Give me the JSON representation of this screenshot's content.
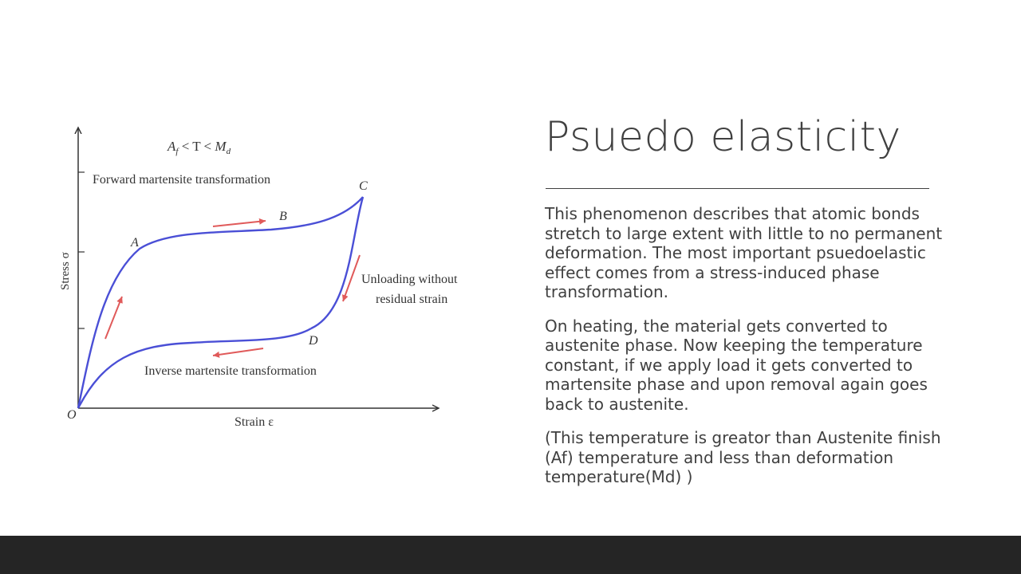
{
  "slide": {
    "title": "Psuedo elasticity",
    "paragraphs": [
      "This phenomenon describes that atomic bonds stretch to large extent with little to no permanent deformation. The most important psuedoelastic effect comes from a stress-induced phase transformation.",
      "On heating, the material gets converted to austenite phase. Now keeping the temperature constant, if we apply load it gets converted to martensite phase and upon removal again goes back to austenite.",
      "(This temperature is greator than Austenite finish (Af) temperature and less than deformation temperature(Md) )"
    ]
  },
  "diagram": {
    "condition": {
      "a": "A",
      "a_sub": "f",
      "mid": " < T < ",
      "m": "M",
      "m_sub": "d"
    },
    "forward_label": "Forward martensite transformation",
    "inverse_label": "Inverse martensite transformation",
    "unloading_label_1": "Unloading without",
    "unloading_label_2": "residual strain",
    "y_axis_label": "Stress σ",
    "x_axis_label": "Strain ε",
    "points": {
      "origin": "O",
      "a": "A",
      "b": "B",
      "c": "C",
      "d": "D"
    },
    "colors": {
      "curve": "#4a4fd6",
      "arrows": "#e05a5a",
      "axes": "#333333"
    }
  }
}
